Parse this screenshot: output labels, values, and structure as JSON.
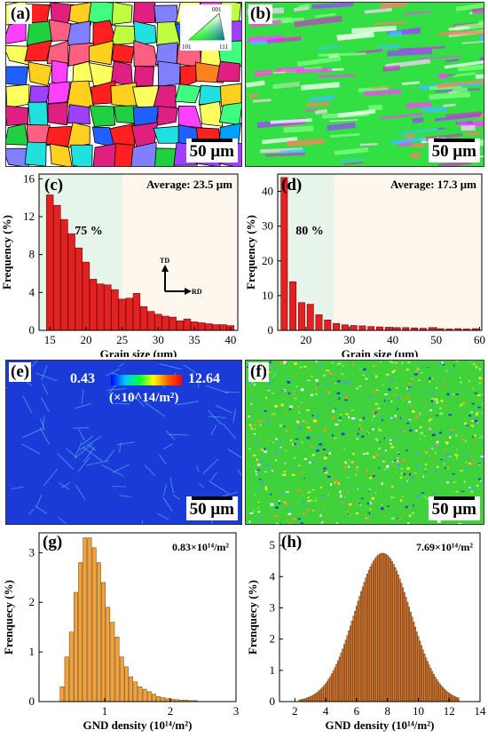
{
  "panels": {
    "a": {
      "label": "(a)",
      "scale": "50 μm",
      "legend": {
        "top": "001",
        "left": "101",
        "right": "111"
      }
    },
    "b": {
      "label": "(b)",
      "scale": "50 μm"
    },
    "c": {
      "label": "(c)",
      "average": "Average: 23.5 μm",
      "fraction": "75 %",
      "axes": {
        "td": "TD",
        "rd": "RD"
      }
    },
    "d": {
      "label": "(d)",
      "average": "Average: 17.3 μm",
      "fraction": "80 %"
    },
    "e": {
      "label": "(e)",
      "scale": "50 μm",
      "cmin": "0.43",
      "cmax": "12.64",
      "cunit": "(×10^14/m²)"
    },
    "f": {
      "label": "(f)",
      "scale": "50 μm"
    },
    "g": {
      "label": "(g)",
      "note": "0.83×10¹⁴/m²"
    },
    "h": {
      "label": "(h)",
      "note": "7.69×10¹⁴/m²"
    }
  },
  "chart_data": [
    {
      "id": "c",
      "type": "bar",
      "xlabel": "Grain size (μm)",
      "ylabel": "Frequency (%)",
      "xlim": [
        13.5,
        41
      ],
      "ylim": [
        0,
        16.5
      ],
      "xticks": [
        15,
        20,
        25,
        30,
        35,
        40
      ],
      "yticks": [
        0,
        4,
        8,
        12,
        16
      ],
      "bin_width": 0.95,
      "x": [
        15,
        16,
        17,
        18,
        19,
        20,
        21,
        22,
        23,
        24,
        25,
        26,
        27,
        28,
        29,
        30,
        31,
        32,
        33,
        34,
        35,
        36,
        37,
        38,
        39,
        40
      ],
      "values": [
        14.3,
        13.2,
        11.7,
        10.2,
        8.7,
        7.2,
        5.4,
        4.9,
        4.8,
        4.3,
        3.3,
        3.4,
        3.9,
        2.5,
        2.0,
        1.7,
        1.5,
        1.4,
        1.0,
        1.2,
        0.9,
        0.8,
        0.7,
        0.6,
        0.6,
        0.5
      ],
      "shade": [
        13.5,
        25
      ]
    },
    {
      "id": "d",
      "type": "bar",
      "xlabel": "Grain size (μm)",
      "ylabel": "Frequency (%)",
      "xlim": [
        13.5,
        60.5
      ],
      "ylim": [
        0,
        45
      ],
      "xticks": [
        20,
        30,
        40,
        50,
        60
      ],
      "yticks": [
        0,
        10,
        20,
        30,
        40
      ],
      "bin_width": 1.5,
      "x": [
        15,
        17,
        19,
        21,
        23,
        25,
        27,
        29,
        31,
        33,
        35,
        37,
        39,
        41,
        43,
        45,
        47,
        49,
        51,
        53,
        55,
        57,
        59
      ],
      "values": [
        44,
        14,
        8,
        7.5,
        4.5,
        3,
        2,
        1.6,
        1.4,
        1.3,
        1.1,
        1.0,
        0.9,
        0.8,
        0.8,
        0.7,
        0.6,
        0.8,
        0.5,
        0.4,
        0.5,
        0.4,
        0.5
      ],
      "shade": [
        13.5,
        26.5
      ]
    },
    {
      "id": "g",
      "type": "bar",
      "xlabel": "GND density (10¹⁴/m²)",
      "ylabel": "Frenquecy (%)",
      "xlim": [
        0,
        3
      ],
      "ylim": [
        0,
        3.4
      ],
      "xticks": [
        1,
        2,
        3
      ],
      "yticks": [
        0,
        1,
        2,
        3
      ],
      "bin_width": 0.058,
      "x": [
        0.35,
        0.42,
        0.49,
        0.56,
        0.63,
        0.7,
        0.77,
        0.84,
        0.91,
        0.98,
        1.05,
        1.12,
        1.19,
        1.26,
        1.33,
        1.4,
        1.47,
        1.54,
        1.61,
        1.68,
        1.75,
        1.82,
        1.89,
        1.96,
        2.03,
        2.1,
        2.17,
        2.24,
        2.31,
        2.38
      ],
      "values": [
        0.3,
        0.9,
        1.4,
        2.2,
        2.8,
        3.3,
        3.3,
        3.1,
        2.8,
        2.4,
        1.9,
        1.6,
        1.3,
        0.9,
        0.7,
        0.5,
        0.4,
        0.3,
        0.25,
        0.2,
        0.15,
        0.1,
        0.08,
        0.06,
        0.05,
        0.04,
        0.03,
        0.03,
        0.02,
        0.02
      ]
    },
    {
      "id": "h",
      "type": "bar",
      "xlabel": "GND density (10¹⁴/m²)",
      "ylabel": "Frenquecy (%)",
      "xlim": [
        1,
        14
      ],
      "ylim": [
        0,
        5.4
      ],
      "xticks": [
        2,
        4,
        6,
        8,
        10,
        12,
        14
      ],
      "yticks": [
        0,
        1,
        2,
        3,
        4,
        5
      ],
      "bin_width": 0.095,
      "distribution": {
        "mean": 7.69,
        "sigma": 1.8,
        "peak": 4.75,
        "start": 2.3,
        "end": 12.6,
        "step": 0.1
      }
    }
  ]
}
